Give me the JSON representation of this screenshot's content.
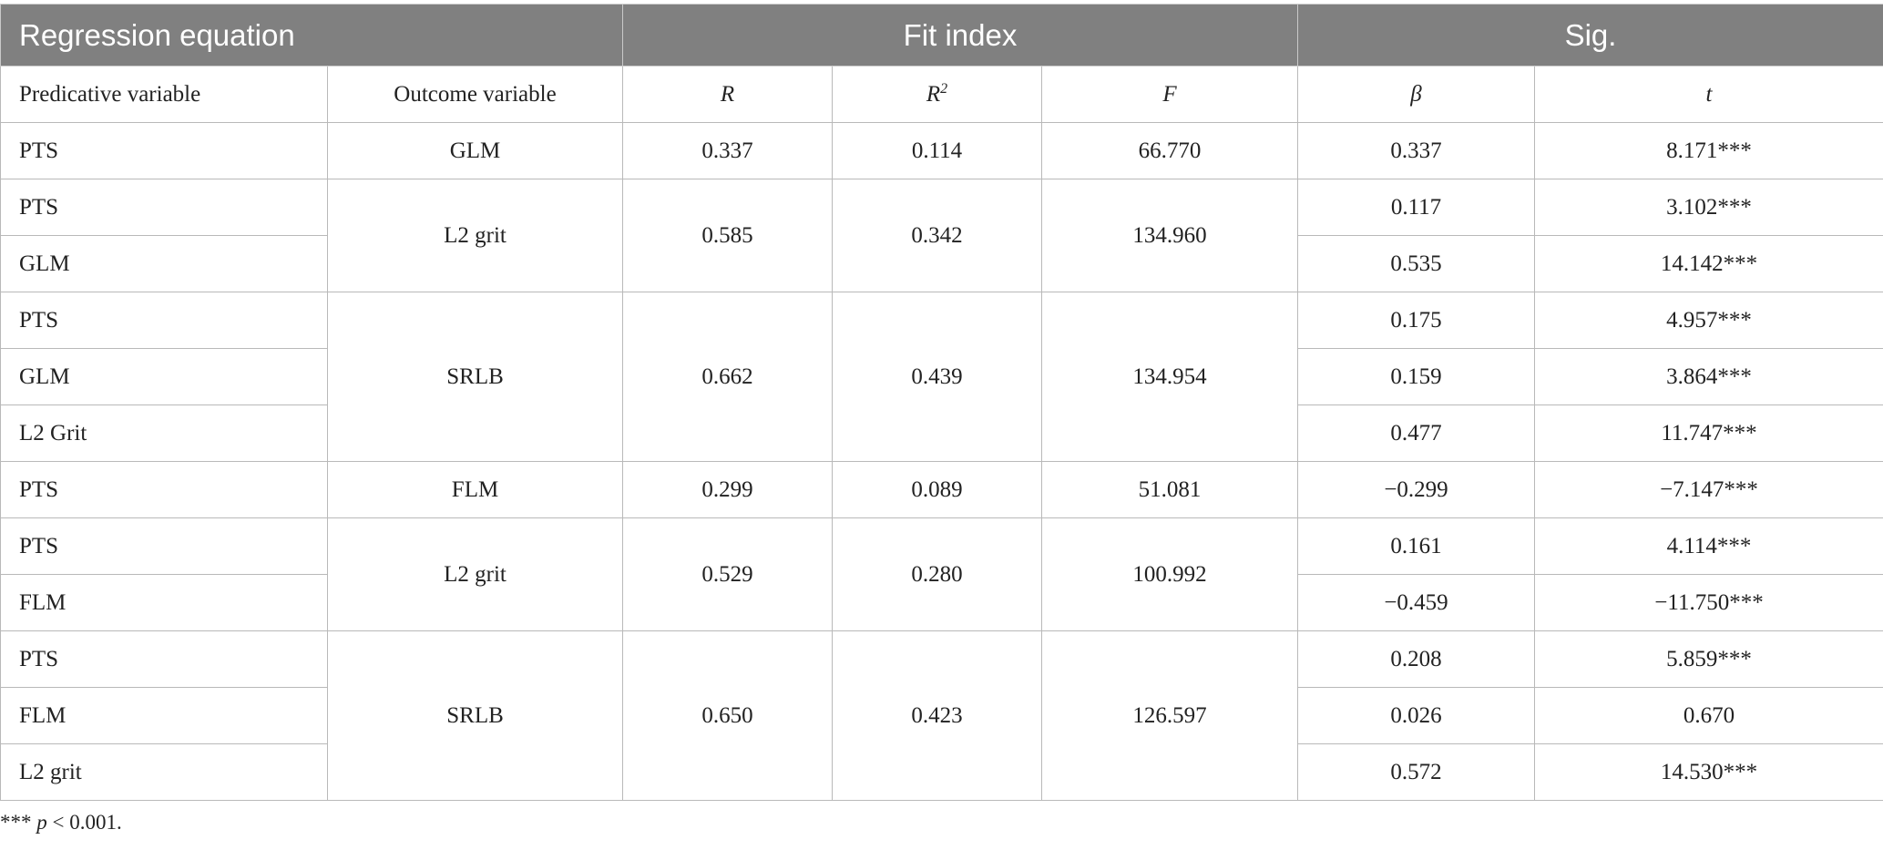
{
  "group_headers": {
    "regression": "Regression equation",
    "fit": "Fit index",
    "sig": "Sig."
  },
  "column_headers": {
    "predictive": "Predicative variable",
    "outcome": "Outcome variable",
    "r": "R",
    "r2_base": "R",
    "r2_sup": "2",
    "f": "F",
    "beta": "β",
    "t": "t"
  },
  "blocks": [
    {
      "outcome": "GLM",
      "r": "0.337",
      "r2": "0.114",
      "f": "66.770",
      "rows": [
        {
          "predictor": "PTS",
          "beta": "0.337",
          "t": "8.171***"
        }
      ]
    },
    {
      "outcome": "L2 grit",
      "r": "0.585",
      "r2": "0.342",
      "f": "134.960",
      "rows": [
        {
          "predictor": "PTS",
          "beta": "0.117",
          "t": "3.102***"
        },
        {
          "predictor": "GLM",
          "beta": "0.535",
          "t": "14.142***"
        }
      ]
    },
    {
      "outcome": "SRLB",
      "r": "0.662",
      "r2": "0.439",
      "f": "134.954",
      "rows": [
        {
          "predictor": "PTS",
          "beta": "0.175",
          "t": "4.957***"
        },
        {
          "predictor": "GLM",
          "beta": "0.159",
          "t": "3.864***"
        },
        {
          "predictor": "L2 Grit",
          "beta": "0.477",
          "t": "11.747***"
        }
      ]
    },
    {
      "outcome": "FLM",
      "r": "0.299",
      "r2": "0.089",
      "f": "51.081",
      "rows": [
        {
          "predictor": "PTS",
          "beta": "−0.299",
          "t": "−7.147***"
        }
      ]
    },
    {
      "outcome": "L2 grit",
      "r": "0.529",
      "r2": "0.280",
      "f": "100.992",
      "rows": [
        {
          "predictor": "PTS",
          "beta": "0.161",
          "t": "4.114***"
        },
        {
          "predictor": "FLM",
          "beta": "−0.459",
          "t": "−11.750***"
        }
      ]
    },
    {
      "outcome": "SRLB",
      "r": "0.650",
      "r2": "0.423",
      "f": "126.597",
      "rows": [
        {
          "predictor": "PTS",
          "beta": "0.208",
          "t": "5.859***"
        },
        {
          "predictor": "FLM",
          "beta": "0.026",
          "t": "0.670"
        },
        {
          "predictor": "L2 grit",
          "beta": "0.572",
          "t": "14.530***"
        }
      ]
    }
  ],
  "footnote": {
    "stars": "***",
    "p": "p",
    "rest": "< 0.001."
  }
}
